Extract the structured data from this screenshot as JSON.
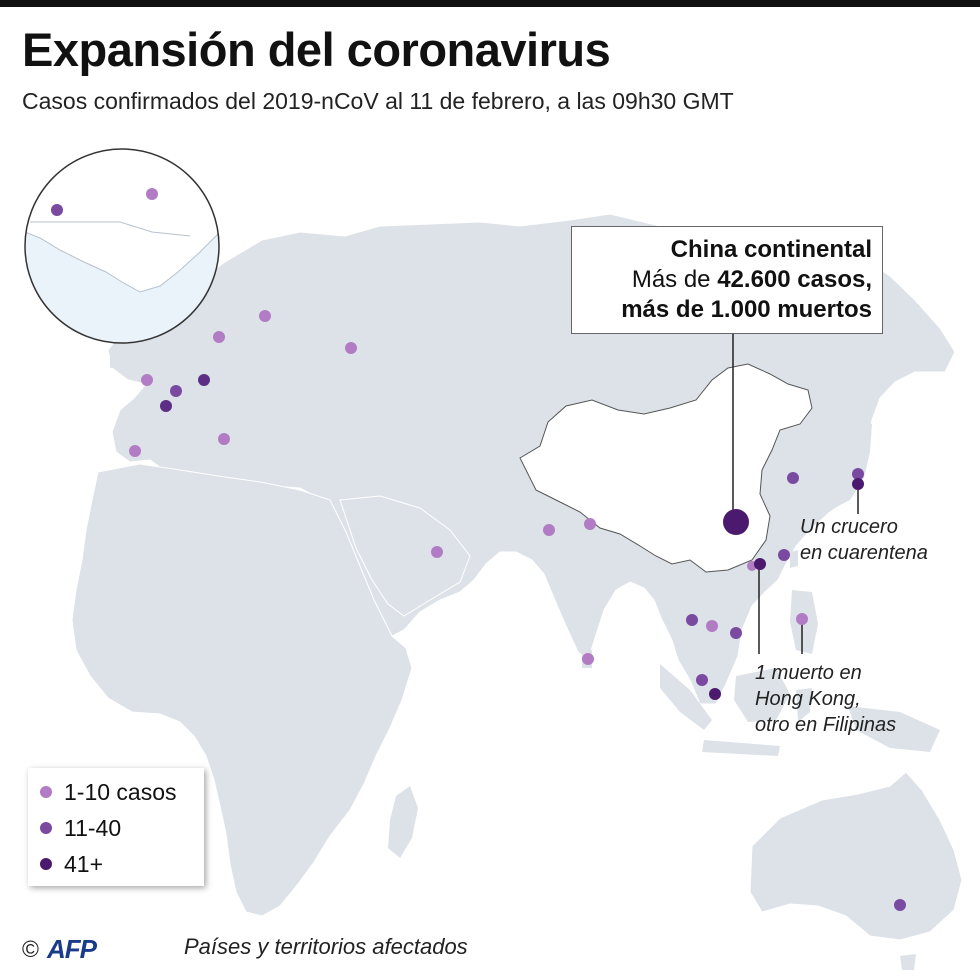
{
  "title": "Expansión del coronavirus",
  "subtitle": "Casos confirmados del 2019-nCoV al 11 de febrero, a las 09h30 GMT",
  "callout": {
    "line1": "China continental",
    "line2_prefix": "Más de ",
    "line2_bold": "42.600 casos,",
    "line3": "más de 1.000 muertos"
  },
  "annotations": {
    "cruise": [
      "Un crucero",
      "en cuarentena"
    ],
    "deaths": [
      "1 muerto en",
      "Hong Kong,",
      "otro en Filipinas"
    ]
  },
  "legend": [
    {
      "label": "1-10 casos",
      "color": "#b27cc5",
      "category": "1-10"
    },
    {
      "label": "11-40",
      "color": "#7a4aa0",
      "category": "11-40"
    },
    {
      "label": "41+",
      "color": "#4b1a6e",
      "category": "41+"
    }
  ],
  "footer": {
    "copyright": "©",
    "agency": "AFP",
    "label": "Países y territorios afectados"
  },
  "colors": {
    "land": "#dde2e8",
    "land_china": "#ffffff",
    "inset_water": "#eaf2fa",
    "border": "#ffffff"
  }
}
